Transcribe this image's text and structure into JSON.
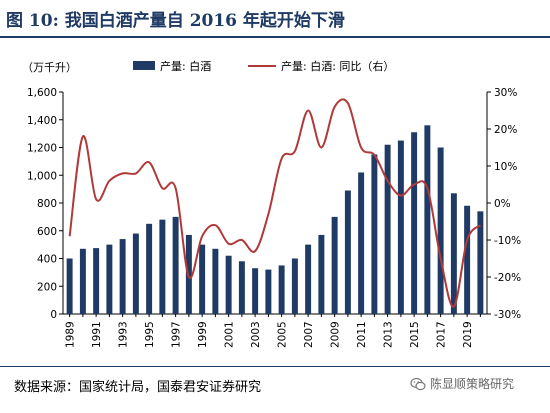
{
  "title": "图 10:  我国白酒产量自 2016 年起开始下滑",
  "source": "数据来源：国家统计局，国泰君安证券研究",
  "watermark": "陈显顺策略研究",
  "icon": "wechat-icon",
  "chart_data": {
    "type": "bar+line",
    "unit_left": "（万千升）",
    "years": [
      1989,
      1990,
      1991,
      1992,
      1993,
      1994,
      1995,
      1996,
      1997,
      1998,
      1999,
      2000,
      2001,
      2002,
      2003,
      2004,
      2005,
      2006,
      2007,
      2008,
      2009,
      2010,
      2011,
      2012,
      2013,
      2014,
      2015,
      2016,
      2017,
      2018,
      2019,
      2020
    ],
    "x_tick_labels": [
      "1989",
      "1991",
      "1993",
      "1995",
      "1997",
      "1999",
      "2001",
      "2003",
      "2005",
      "2007",
      "2009",
      "2011",
      "2013",
      "2015",
      "2017",
      "2019"
    ],
    "series": [
      {
        "name": "产量: 白酒",
        "axis": "left",
        "color": "#1f3a64",
        "values": [
          400,
          470,
          475,
          500,
          540,
          580,
          650,
          680,
          700,
          570,
          500,
          470,
          420,
          380,
          330,
          320,
          350,
          400,
          500,
          570,
          700,
          890,
          1020,
          1150,
          1220,
          1250,
          1310,
          1360,
          1200,
          870,
          780,
          740
        ]
      },
      {
        "name": "产量: 白酒: 同比（右）",
        "axis": "right",
        "color": "#b03a3a",
        "values": [
          -9,
          18,
          1,
          6,
          8,
          8,
          11,
          4,
          4,
          -20,
          -9,
          -6,
          -11,
          -10,
          -13,
          -3,
          12,
          14,
          25,
          15,
          26,
          27,
          15,
          13,
          6,
          2,
          5,
          4,
          -15,
          -28,
          -10,
          -6
        ]
      }
    ],
    "y_left": {
      "min": 0,
      "max": 1600,
      "ticks": [
        0,
        200,
        400,
        600,
        800,
        1000,
        1200,
        1400,
        1600
      ],
      "tick_labels": [
        "0",
        "200",
        "400",
        "600",
        "800",
        "1,000",
        "1,200",
        "1,400",
        "1,600"
      ]
    },
    "y_right": {
      "min": -30,
      "max": 30,
      "ticks": [
        -30,
        -20,
        -10,
        0,
        10,
        20,
        30
      ],
      "tick_labels": [
        "-30%",
        "-20%",
        "-10%",
        "0%",
        "10%",
        "20%",
        "30%"
      ]
    },
    "legend_position": "top",
    "grid": false
  }
}
